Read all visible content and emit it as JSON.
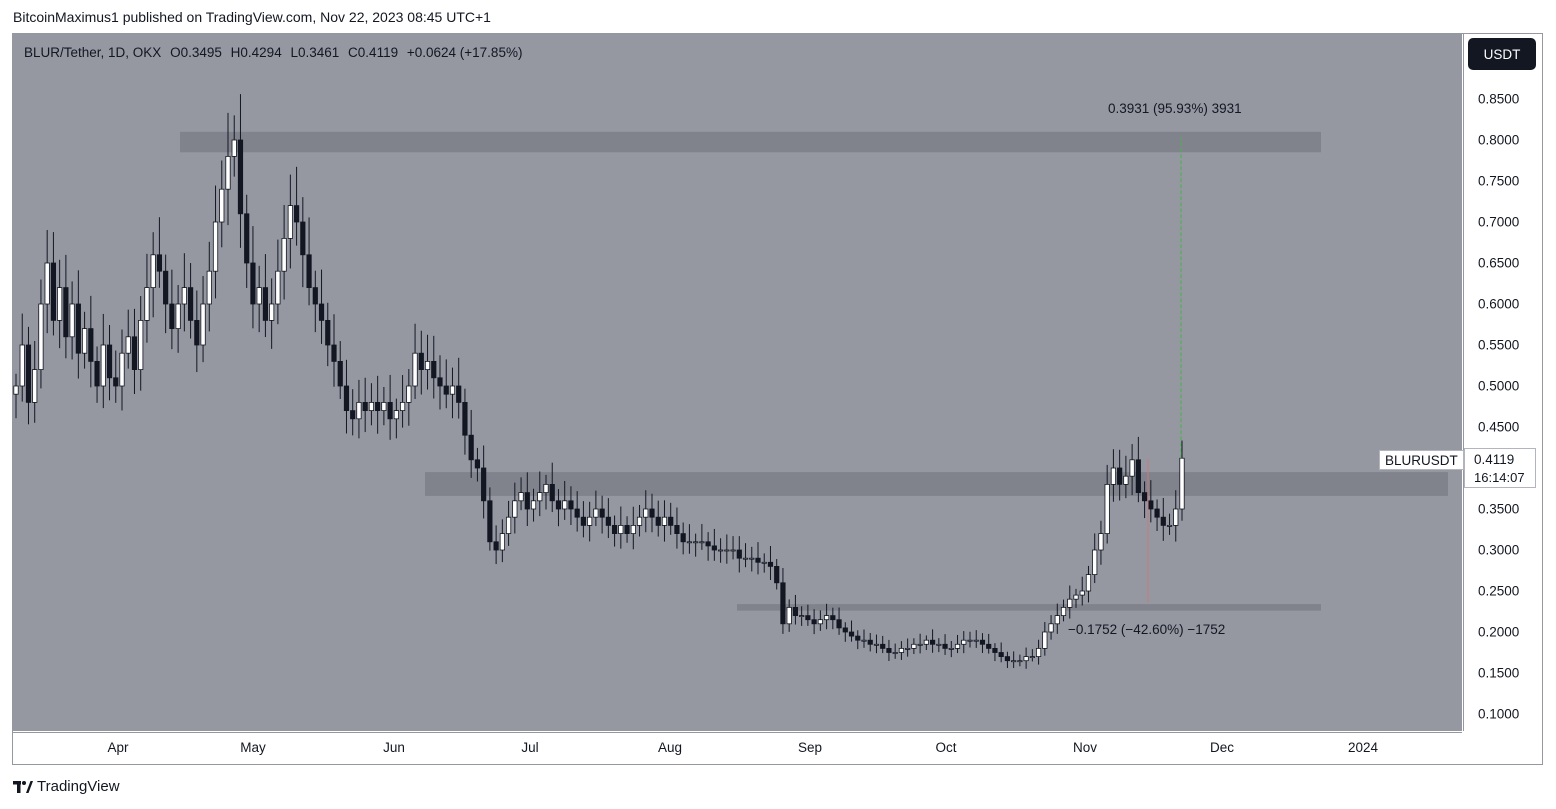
{
  "publisher_line": "BitcoinMaximus1 published on TradingView.com, Nov 22, 2023 08:45 UTC+1",
  "legend": {
    "symbol": "BLUR/Tether, 1D, OKX",
    "o_label": "O",
    "o_val": "0.3495",
    "h_label": "H",
    "h_val": "0.4294",
    "l_label": "L",
    "l_val": "0.3461",
    "c_label": "C",
    "c_val": "0.4119",
    "change": "+0.0624 (+17.85%)"
  },
  "currency_button": "USDT",
  "price_tag": {
    "symbol": "BLURUSDT",
    "price": "0.4119",
    "countdown": "16:14:07"
  },
  "measure_up": "0.3931 (95.93%) 3931",
  "measure_down": "−0.1752 (−42.60%) −1752",
  "brand": "TradingView",
  "colors": {
    "plot_bg": "#9598a1",
    "zone": "#7c7f88",
    "up_measure": "#4caf50",
    "down_measure": "#c87a7a",
    "candle_body": "#131722"
  },
  "chart_data": {
    "type": "candlestick",
    "title": "BLUR/Tether, 1D, OKX",
    "xlabel": "",
    "ylabel": "",
    "ylim": [
      0.08,
      0.885
    ],
    "y_ticks": [
      "0.1000",
      "0.1500",
      "0.2000",
      "0.2500",
      "0.3000",
      "0.3500",
      "0.4000",
      "0.4500",
      "0.5000",
      "0.5500",
      "0.6000",
      "0.6500",
      "0.7000",
      "0.7500",
      "0.8000",
      "0.8500"
    ],
    "x_ticks": [
      "Apr",
      "May",
      "Jun",
      "Jul",
      "Aug",
      "Sep",
      "Oct",
      "Nov",
      "Dec",
      "2024"
    ],
    "zones": [
      {
        "low": 0.785,
        "high": 0.81
      },
      {
        "low": 0.366,
        "high": 0.395
      },
      {
        "low": 0.226,
        "high": 0.234
      }
    ],
    "measure_up": {
      "from": 0.4119,
      "to": 0.805,
      "change": 0.3931,
      "percent": 95.93
    },
    "measure_down": {
      "from": 0.4112,
      "to": 0.236,
      "change": -0.1752,
      "percent": -42.6
    },
    "last_close": 0.4119,
    "series": [
      {
        "name": "",
        "daily_close": [
          0.5,
          0.55,
          0.48,
          0.52,
          0.6,
          0.65,
          0.58,
          0.62,
          0.56,
          0.6,
          0.54,
          0.57,
          0.53,
          0.5,
          0.55,
          0.51,
          0.5,
          0.54,
          0.56,
          0.52,
          0.58,
          0.62,
          0.66,
          0.64,
          0.6,
          0.57,
          0.6,
          0.62,
          0.58,
          0.55,
          0.6,
          0.64,
          0.7,
          0.74,
          0.78,
          0.8,
          0.71,
          0.65,
          0.6,
          0.62,
          0.58,
          0.6,
          0.64,
          0.68,
          0.72,
          0.7,
          0.66,
          0.62,
          0.6,
          0.58,
          0.55,
          0.53,
          0.5,
          0.47,
          0.46,
          0.48,
          0.47,
          0.48,
          0.47,
          0.48,
          0.46,
          0.47,
          0.48,
          0.5,
          0.54,
          0.52,
          0.53,
          0.51,
          0.5,
          0.49,
          0.5,
          0.48,
          0.44,
          0.41,
          0.4,
          0.36,
          0.31,
          0.3,
          0.32,
          0.34,
          0.36,
          0.37,
          0.35,
          0.36,
          0.37,
          0.38,
          0.36,
          0.35,
          0.36,
          0.35,
          0.34,
          0.33,
          0.34,
          0.35,
          0.34,
          0.33,
          0.32,
          0.33,
          0.32,
          0.33,
          0.34,
          0.35,
          0.34,
          0.33,
          0.34,
          0.33,
          0.32,
          0.31,
          0.31,
          0.31,
          0.31,
          0.305,
          0.3,
          0.3,
          0.3,
          0.3,
          0.29,
          0.29,
          0.29,
          0.285,
          0.285,
          0.28,
          0.26,
          0.21,
          0.23,
          0.22,
          0.22,
          0.215,
          0.21,
          0.215,
          0.22,
          0.215,
          0.205,
          0.2,
          0.195,
          0.19,
          0.19,
          0.185,
          0.185,
          0.18,
          0.175,
          0.175,
          0.18,
          0.18,
          0.185,
          0.185,
          0.19,
          0.185,
          0.185,
          0.18,
          0.18,
          0.185,
          0.19,
          0.19,
          0.19,
          0.185,
          0.18,
          0.175,
          0.17,
          0.165,
          0.165,
          0.165,
          0.17,
          0.17,
          0.18,
          0.2,
          0.21,
          0.22,
          0.23,
          0.24,
          0.245,
          0.25,
          0.27,
          0.3,
          0.32,
          0.38,
          0.4,
          0.38,
          0.39,
          0.41,
          0.37,
          0.36,
          0.35,
          0.34,
          0.33,
          0.33,
          0.35,
          0.4119
        ]
      }
    ]
  }
}
